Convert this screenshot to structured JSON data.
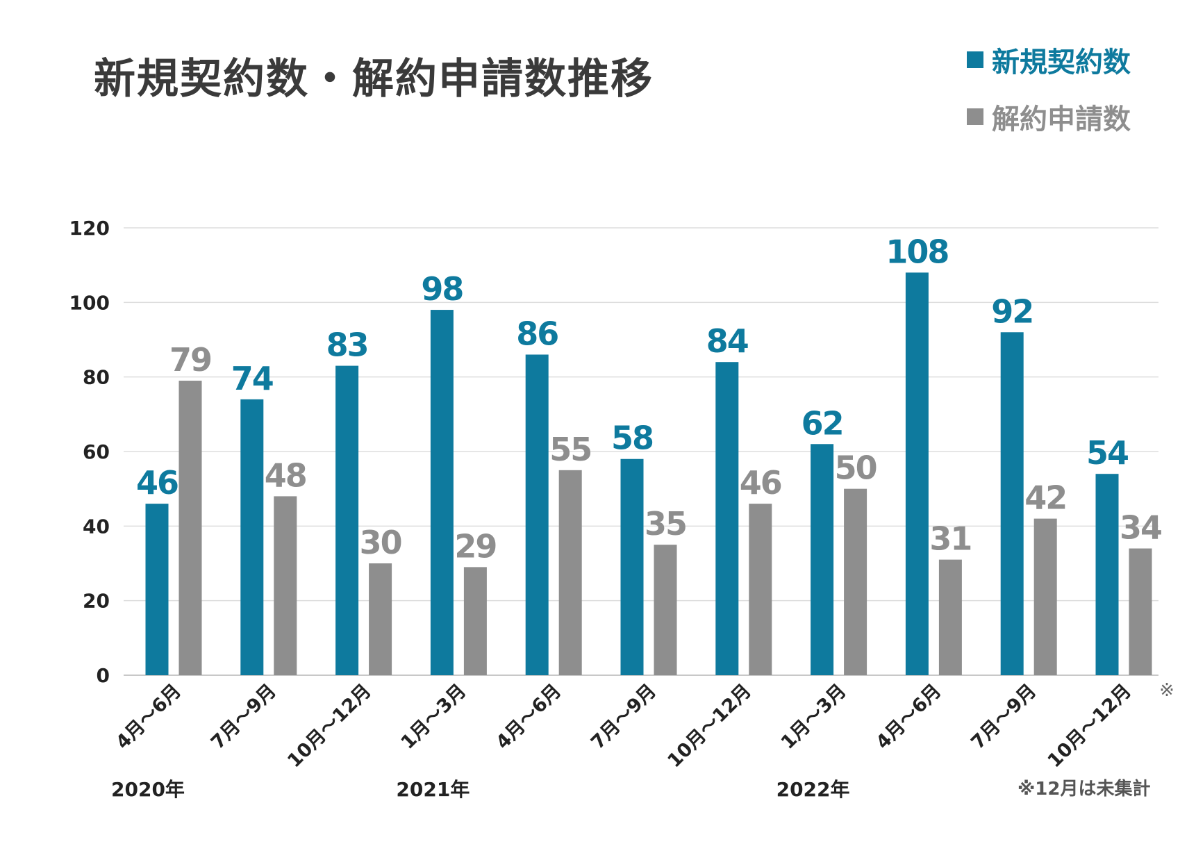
{
  "chart_data": {
    "type": "bar",
    "title": "新規契約数・解約申請数推移",
    "categories": [
      "4月～6月",
      "7月～9月",
      "10月～12月",
      "1月～3月",
      "4月～6月",
      "7月～9月",
      "10月～12月",
      "1月～3月",
      "4月～6月",
      "7月～9月",
      "10月～12月"
    ],
    "category_marks": [
      "",
      "",
      "",
      "",
      "",
      "",
      "",
      "",
      "",
      "",
      "※"
    ],
    "year_labels": [
      {
        "label": "2020年",
        "category_index": 0
      },
      {
        "label": "2021年",
        "category_index": 3
      },
      {
        "label": "2022年",
        "category_index": 7
      }
    ],
    "series": [
      {
        "name": "新規契約数",
        "color": "#0e7a9e",
        "values": [
          46,
          74,
          83,
          98,
          86,
          58,
          84,
          62,
          108,
          92,
          54
        ]
      },
      {
        "name": "解約申請数",
        "color": "#8e8e8e",
        "values": [
          79,
          48,
          30,
          29,
          55,
          35,
          46,
          50,
          31,
          42,
          34
        ]
      }
    ],
    "ylim": [
      0,
      120
    ],
    "yticks": [
      0,
      20,
      40,
      60,
      80,
      100,
      120
    ],
    "grid": true,
    "legend_position": "top-right",
    "data_labels": true,
    "footnote": "※12月は未集計"
  }
}
